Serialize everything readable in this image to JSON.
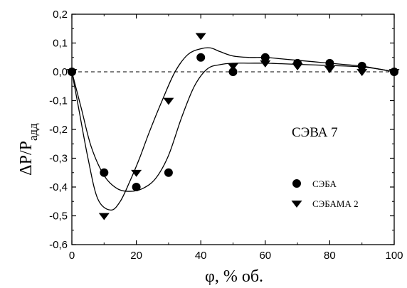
{
  "chart_data": {
    "type": "scatter",
    "title": "",
    "xlabel": "φ, % об.",
    "ylabel_main": "ΔP/P",
    "ylabel_sub": "адд",
    "xlim": [
      0,
      100
    ],
    "ylim": [
      -0.6,
      0.2
    ],
    "x_ticks": [
      0,
      20,
      40,
      60,
      80,
      100
    ],
    "x_tick_labels": [
      "0",
      "20",
      "40",
      "60",
      "80",
      "100"
    ],
    "y_ticks": [
      -0.6,
      -0.5,
      -0.4,
      -0.3,
      -0.2,
      -0.1,
      0.0,
      0.1,
      0.2
    ],
    "y_tick_labels": [
      "-0,6",
      "-0,5",
      "-0,4",
      "-0,3",
      "-0,2",
      "-0,1",
      "0,0",
      "0,1",
      "0,2"
    ],
    "annotation": "СЭВА 7",
    "reference_line": {
      "y": 0,
      "style": "dashed"
    },
    "legend_position": "lower-right",
    "series": [
      {
        "name": "СЭБА",
        "marker": "circle",
        "x": [
          0,
          10,
          20,
          30,
          40,
          50,
          60,
          70,
          80,
          90,
          100
        ],
        "y": [
          0.0,
          -0.35,
          -0.4,
          -0.35,
          0.05,
          0.0,
          0.05,
          0.03,
          0.03,
          0.02,
          0.0
        ],
        "fit": {
          "x": [
            0,
            3,
            6,
            10,
            14,
            18,
            22,
            26,
            30,
            34,
            38,
            42,
            46,
            50,
            55,
            60,
            65,
            70,
            75,
            80,
            85,
            90,
            95,
            100
          ],
          "y": [
            0.0,
            -0.13,
            -0.26,
            -0.36,
            -0.405,
            -0.415,
            -0.405,
            -0.37,
            -0.29,
            -0.16,
            -0.05,
            0.01,
            0.025,
            0.03,
            0.03,
            0.03,
            0.028,
            0.026,
            0.024,
            0.022,
            0.02,
            0.017,
            0.01,
            0.0
          ]
        }
      },
      {
        "name": "СЭБАМА 2",
        "marker": "triangle-down",
        "x": [
          0,
          10,
          20,
          30,
          40,
          50,
          60,
          70,
          80,
          90,
          100
        ],
        "y": [
          0.0,
          -0.5,
          -0.35,
          -0.1,
          0.125,
          0.02,
          0.03,
          0.02,
          0.01,
          0.0,
          0.0
        ],
        "fit": {
          "x": [
            0,
            2,
            5,
            8,
            12,
            15,
            18,
            21,
            24,
            28,
            32,
            36,
            40,
            43,
            46,
            50,
            55,
            60,
            65,
            70,
            75,
            80,
            85,
            90,
            95,
            100
          ],
          "y": [
            0.0,
            -0.12,
            -0.3,
            -0.44,
            -0.48,
            -0.45,
            -0.38,
            -0.3,
            -0.21,
            -0.1,
            0.0,
            0.06,
            0.08,
            0.083,
            0.07,
            0.055,
            0.05,
            0.05,
            0.045,
            0.04,
            0.035,
            0.03,
            0.025,
            0.02,
            0.01,
            0.0
          ]
        }
      }
    ]
  }
}
